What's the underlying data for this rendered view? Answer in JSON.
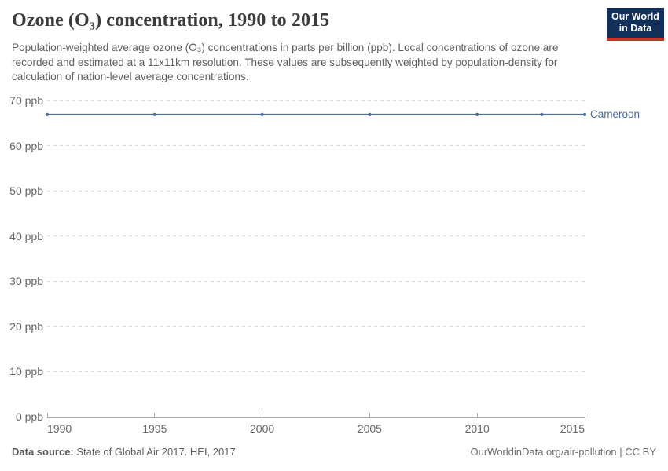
{
  "header": {
    "title": "Ozone (O₃) concentration, 1990 to 2015",
    "subtitle": "Population-weighted average ozone (O₃) concentrations in parts per billion (ppb). Local concentrations of ozone are recorded and estimated at a 11x11km resolution. These values are subsequently weighted by population-density for calculation of nation-level average concentrations."
  },
  "logo": {
    "line1": "Our World",
    "line2": "in Data",
    "bg_color": "#12305a",
    "accent_color": "#c13629"
  },
  "footer": {
    "source_label": "Data source:",
    "source_value": "State of Global Air 2017. HEI, 2017",
    "credit": "OurWorldinData.org/air-pollution | CC BY"
  },
  "chart_data": {
    "type": "line",
    "title": "Ozone (O₃) concentration, 1990 to 2015",
    "x": [
      1990,
      1995,
      2000,
      2005,
      2010,
      2013,
      2015
    ],
    "series": [
      {
        "name": "Cameroon",
        "color": "#4C6A9C",
        "values": [
          66.9,
          66.9,
          66.9,
          66.9,
          66.9,
          66.9,
          66.9
        ]
      }
    ],
    "unit": "ppb",
    "xlim": [
      1990,
      2015
    ],
    "ylim": [
      0,
      70
    ],
    "yticks": [
      0,
      10,
      20,
      30,
      40,
      50,
      60,
      70
    ],
    "ytick_suffix": " ppb",
    "xticks": [
      1990,
      1995,
      2000,
      2005,
      2010,
      2015
    ],
    "grid": "horizontal-dashed",
    "legend_position": "right-of-line"
  }
}
